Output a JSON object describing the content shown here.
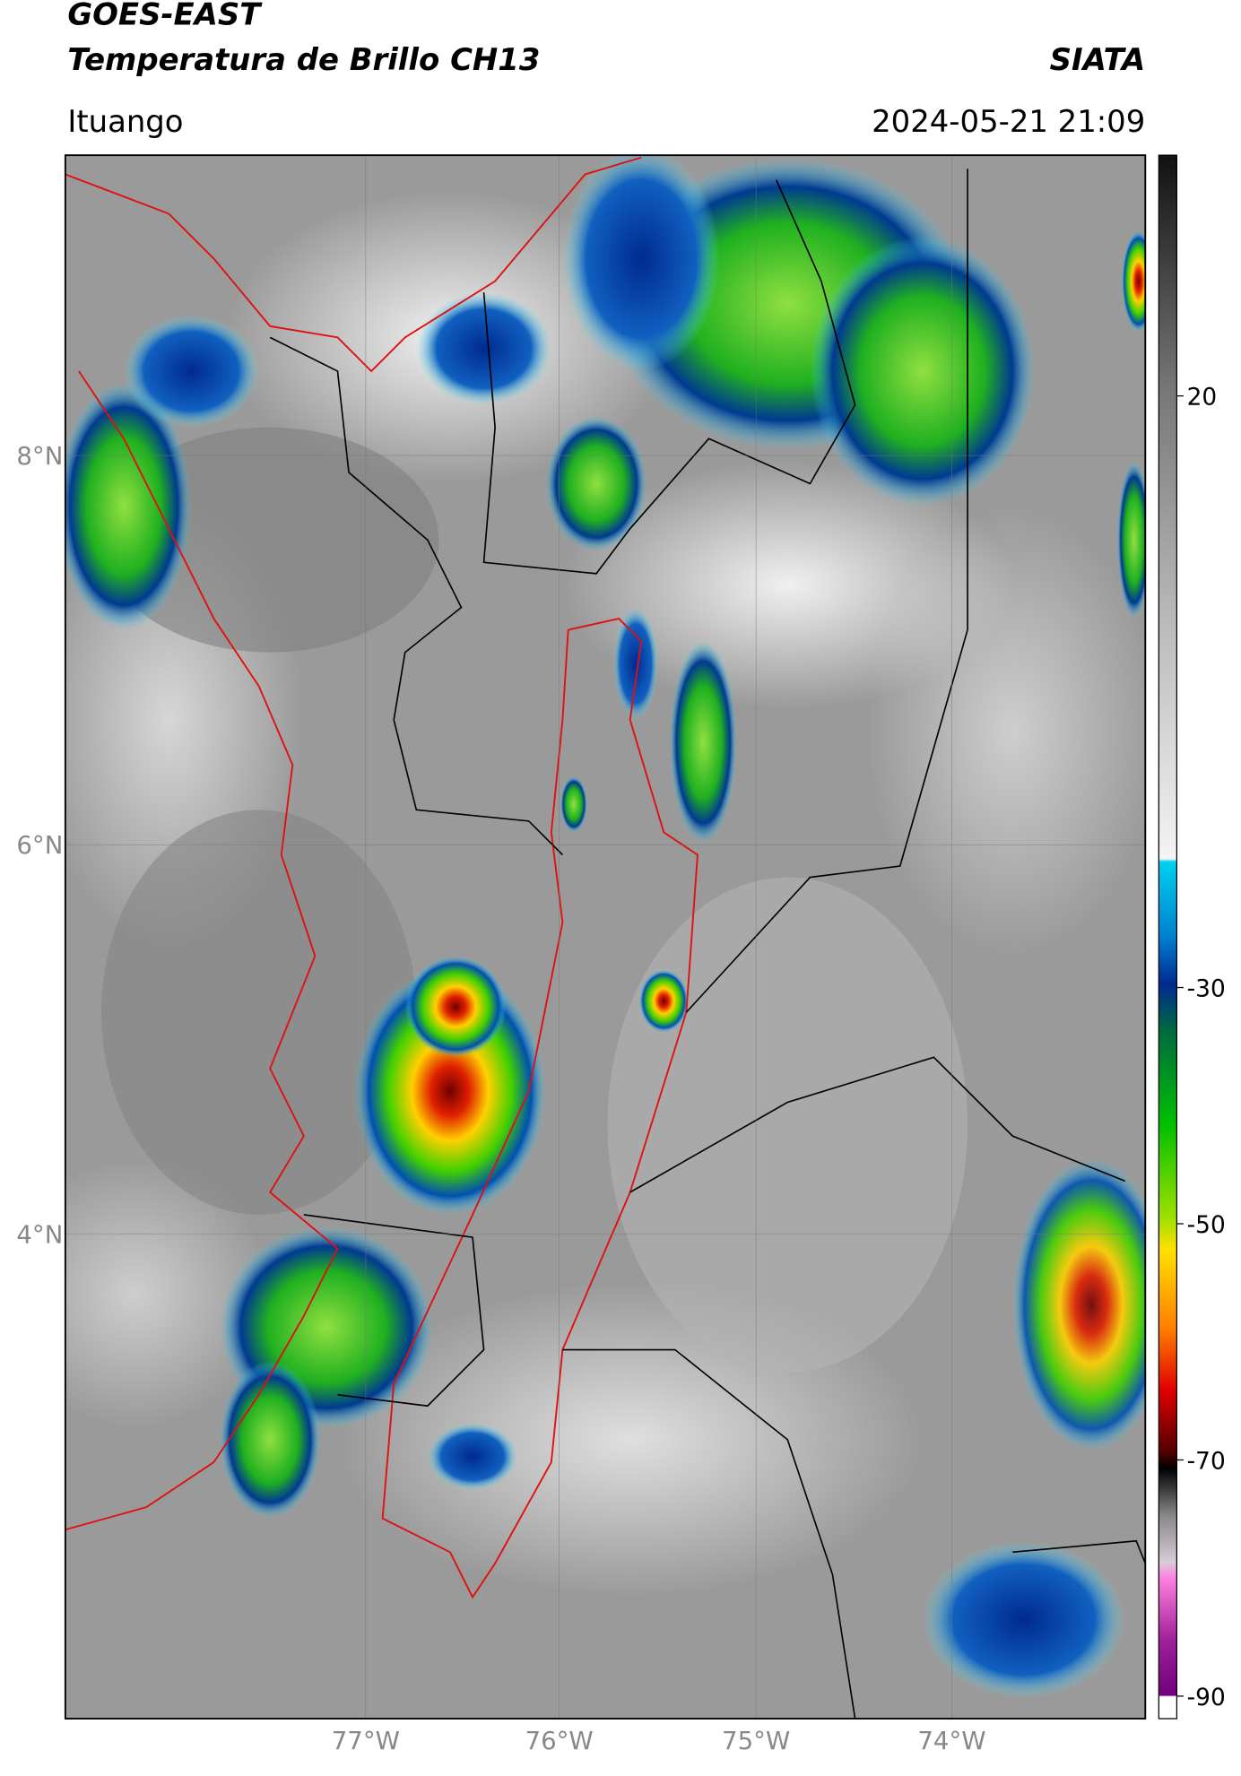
{
  "header": {
    "title_line1": "GOES-EAST",
    "title_line2": "Temperatura de Brillo CH13",
    "source": "SIATA",
    "location": "Ituango",
    "datetime": "2024-05-21 21:09"
  },
  "map": {
    "lat_labels": [
      "8°N",
      "6°N",
      "4°N"
    ],
    "lon_labels": [
      "77°W",
      "76°W",
      "75°W",
      "74°W"
    ]
  },
  "colorbar": {
    "ticks": [
      20,
      -30,
      -50,
      -70,
      -90
    ]
  }
}
